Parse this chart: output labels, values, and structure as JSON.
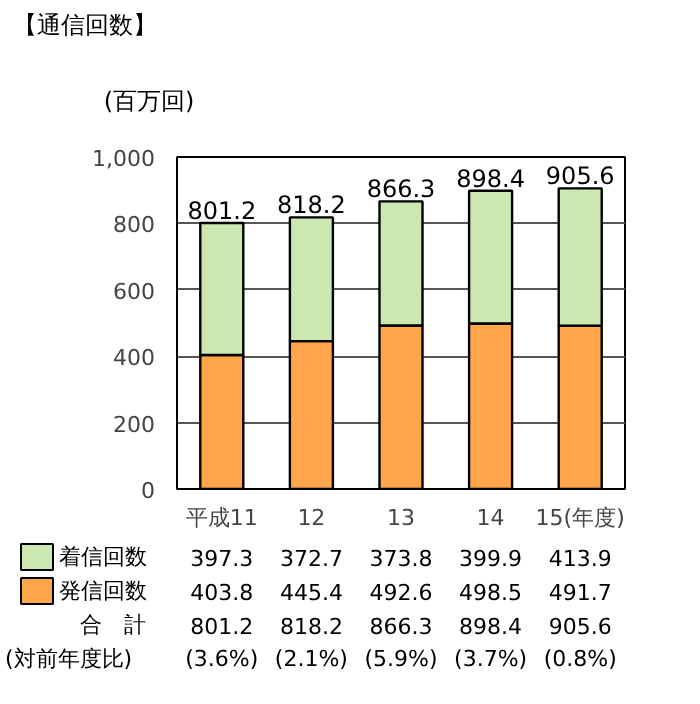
{
  "chart_data": {
    "type": "bar",
    "title": "【通信回数】",
    "ylabel": "(百万回)",
    "categories": [
      "平成11",
      "12",
      "13",
      "14",
      "15(年度)"
    ],
    "stacked": true,
    "series": [
      {
        "name": "発信回数",
        "color": "#ffa64d",
        "values": [
          403.8,
          445.4,
          492.6,
          498.5,
          491.7
        ]
      },
      {
        "name": "着信回数",
        "color": "#cce8b0",
        "values": [
          397.3,
          372.7,
          373.8,
          399.9,
          413.9
        ]
      }
    ],
    "totals": [
      "801.2",
      "818.2",
      "866.3",
      "898.4",
      "905.6"
    ],
    "data_labels": true,
    "annotations": [
      "合　計",
      "(対前年度比)",
      "(3.6%)",
      "(2.1%)",
      "(5.9%)",
      "(3.7%)",
      "(0.8%)"
    ],
    "ylim": [
      0,
      1000
    ],
    "yticks": [
      0,
      200,
      400,
      600,
      800,
      {
        "value": 1000,
        "label": "1,000"
      }
    ],
    "grid": "y",
    "legend": "bottom"
  }
}
